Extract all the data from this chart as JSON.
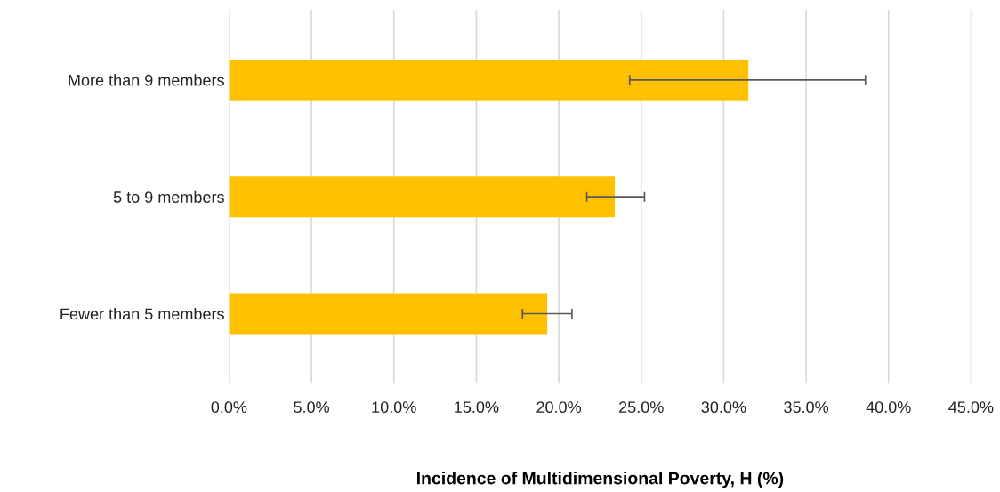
{
  "chart_data": {
    "type": "bar",
    "orientation": "horizontal",
    "xlabel": "Incidence of Multidimensional Poverty, H (%)",
    "categories": [
      "More than 9 members",
      "5 to 9 members",
      "Fewer than 5 members"
    ],
    "values": [
      31.5,
      23.4,
      19.3
    ],
    "color": "#ffc000",
    "errors": [
      [
        24.3,
        38.6
      ],
      [
        21.7,
        25.2
      ],
      [
        17.8,
        20.8
      ]
    ],
    "xlim": [
      0,
      45
    ],
    "xticks": [
      {
        "value": 0,
        "label": "0.0%"
      },
      {
        "value": 5,
        "label": "5.0%"
      },
      {
        "value": 10,
        "label": "10.0%"
      },
      {
        "value": 15,
        "label": "15.0%"
      },
      {
        "value": 20,
        "label": "20.0%"
      },
      {
        "value": 25,
        "label": "25.0%"
      },
      {
        "value": 30,
        "label": "30.0%"
      },
      {
        "value": 35,
        "label": "35.0%"
      },
      {
        "value": 40,
        "label": "40.0%"
      },
      {
        "value": 45,
        "label": "45.0%"
      }
    ],
    "grid": "x"
  }
}
